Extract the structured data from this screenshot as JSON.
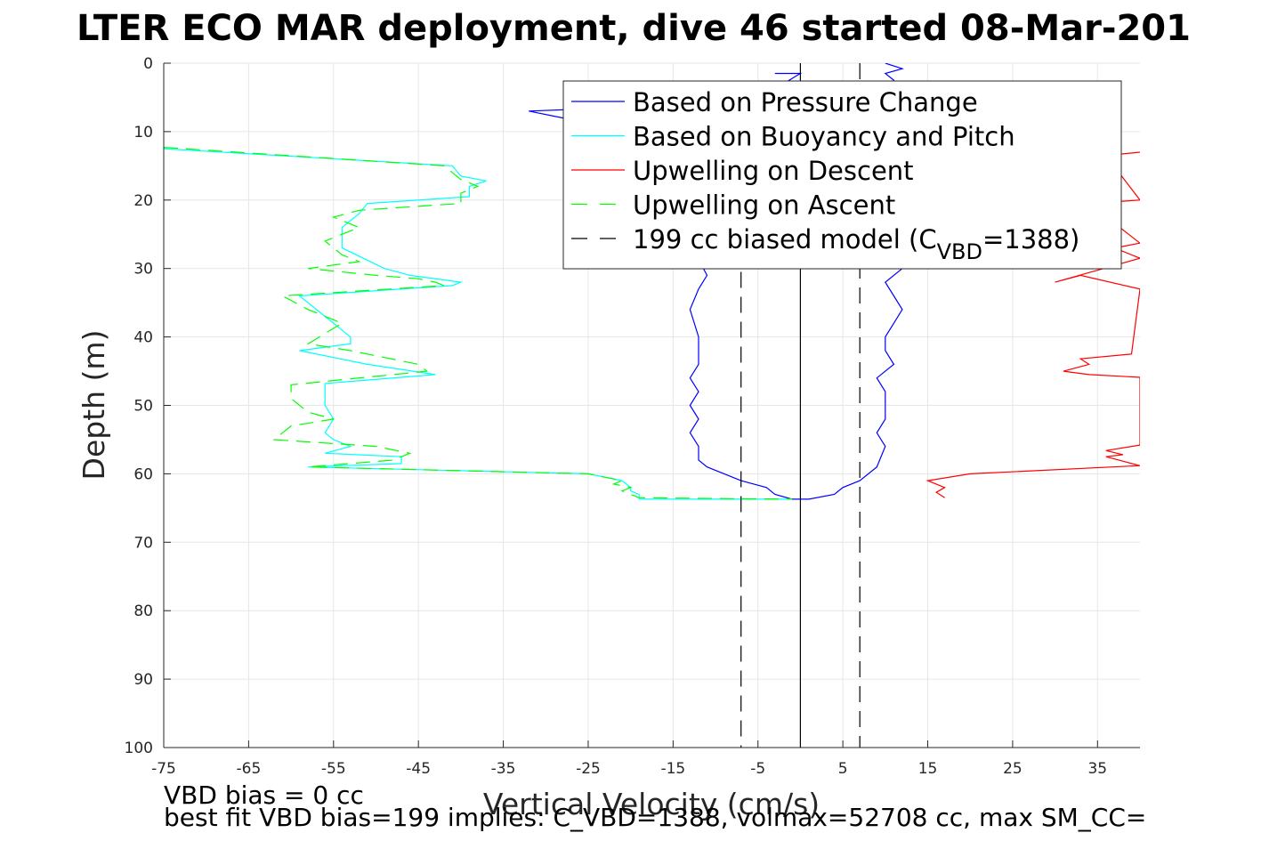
{
  "chart_data": {
    "type": "line",
    "title": "LTER ECO MAR deployment, dive 46 started 08-Mar-201",
    "xlabel": "Vertical Velocity (cm/s)",
    "ylabel": "Depth (m)",
    "xlim": [
      -75,
      40
    ],
    "ylim": [
      0,
      100
    ],
    "y_reversed": true,
    "grid": true,
    "x_ticks": [
      -75,
      -65,
      -55,
      -45,
      -35,
      -25,
      -15,
      -5,
      5,
      15,
      25,
      35
    ],
    "y_ticks": [
      0,
      10,
      20,
      30,
      40,
      50,
      60,
      70,
      80,
      90,
      100
    ],
    "legend_position": "top-right",
    "legend": [
      {
        "label": "Based on Pressure Change",
        "color": "#0000ff",
        "dash": "solid"
      },
      {
        "label": "Based on Buoyancy and Pitch",
        "color": "#00ffff",
        "dash": "solid"
      },
      {
        "label": "Upwelling on Descent",
        "color": "#ff0000",
        "dash": "solid"
      },
      {
        "label": "Upwelling on Ascent",
        "color": "#00ff00",
        "dash": "dashed"
      },
      {
        "label_main": "199 cc biased model (C",
        "label_sub": "VBD",
        "label_end": "=1388)",
        "color": "#000000",
        "dash": "dashed"
      }
    ],
    "series": [
      {
        "name": "Based on Pressure Change",
        "color": "#0000ff",
        "dash": "solid",
        "x": [
          -3,
          0,
          -2,
          -10,
          -32,
          -28,
          -24,
          -20,
          -11,
          -12,
          -13,
          -12,
          -12,
          -13,
          -12,
          -13,
          -12,
          -13,
          -12,
          -12,
          -11,
          -7,
          -4,
          -3,
          -1,
          1,
          4,
          5,
          7,
          9,
          10,
          9,
          10,
          10,
          10,
          9,
          11,
          10,
          10,
          11,
          12,
          11,
          10,
          12,
          13,
          12,
          11,
          10,
          10,
          11,
          10,
          12,
          10
        ],
        "y": [
          1.5,
          1.5,
          3,
          6,
          7,
          8,
          9,
          10,
          31,
          33,
          36,
          40,
          44,
          46,
          48,
          50,
          52,
          54,
          56,
          58,
          59,
          61,
          62,
          63,
          63.7,
          63.7,
          63,
          62,
          61,
          59,
          56,
          54,
          52,
          50,
          48,
          46,
          44,
          42,
          40,
          38,
          36,
          34,
          32,
          30,
          25,
          20,
          15,
          10,
          5,
          2.5,
          1.5,
          0.8,
          0
        ]
      },
      {
        "name": "Based on Buoyancy and Pitch",
        "color": "#00ffff",
        "dash": "solid",
        "x": [
          -75,
          -41,
          -40,
          -37,
          -39,
          -39,
          -51,
          -52,
          -54,
          -54,
          -49,
          -46,
          -40,
          -41,
          -59,
          -56,
          -53,
          -53,
          -59,
          -51,
          -43,
          -56,
          -56,
          -55,
          -56,
          -55,
          -53,
          -56,
          -47,
          -47,
          -58,
          -25,
          -21,
          -20,
          -20,
          -19,
          -19,
          -1
        ],
        "y": [
          12.5,
          15,
          16.5,
          17.2,
          18,
          19.5,
          20.5,
          22,
          24,
          27,
          30,
          31,
          32,
          32.5,
          34,
          37,
          40,
          41,
          42,
          44,
          45.5,
          46.8,
          50,
          52,
          54,
          55,
          56,
          57,
          57.5,
          58.5,
          59,
          60,
          61,
          62,
          62.5,
          63,
          63.7,
          63.7
        ]
      },
      {
        "name": "Upwelling on Ascent",
        "color": "#00ff00",
        "dash": "dashed",
        "x": [
          -75,
          -42,
          -40,
          -38,
          -40,
          -40,
          -52,
          -55,
          -52,
          -56,
          -54,
          -52,
          -58,
          -50,
          -45,
          -43,
          -42,
          -61,
          -58,
          -54,
          -58,
          -53,
          -45,
          -44,
          -60,
          -60,
          -58,
          -55,
          -60,
          -62,
          -50,
          -46,
          -48,
          -58,
          -25,
          -21,
          -22,
          -20,
          -21,
          -20,
          -19,
          -1
        ],
        "y": [
          12.3,
          15,
          17,
          18,
          19,
          20.5,
          21.5,
          22.5,
          24,
          26,
          28,
          29,
          30,
          31,
          31.5,
          32,
          32.5,
          34,
          36,
          38,
          41,
          42,
          44,
          45,
          47,
          49,
          51,
          52,
          53,
          55,
          56,
          57,
          58,
          59,
          60,
          61,
          61.5,
          62,
          62.5,
          63,
          63.5,
          63.7
        ]
      },
      {
        "name": "Upwelling on Descent",
        "color": "#ff0000",
        "dash": "solid",
        "x": [
          40,
          36,
          40,
          34,
          40,
          37,
          40,
          30,
          33,
          40,
          39,
          33,
          34,
          31,
          34,
          40,
          40,
          36,
          38,
          36,
          40,
          20,
          15,
          17,
          16,
          17
        ],
        "y": [
          13,
          13.5,
          20,
          20.5,
          26.3,
          27,
          28.5,
          32,
          31,
          33,
          42.5,
          43.2,
          44,
          45,
          45.5,
          45.9,
          55.8,
          56.6,
          57.2,
          57.5,
          58.8,
          60,
          61,
          62,
          62.7,
          63.5
        ]
      },
      {
        "name": "199 cc biased model (CVBD=1388)",
        "color": "#000000",
        "dash": "dashed",
        "x": [
          -7,
          -7
        ],
        "y": [
          5,
          100
        ]
      },
      {
        "name": "199 cc biased model (CVBD=1388)",
        "color": "#000000",
        "dash": "dashed",
        "x": [
          7,
          7
        ],
        "y": [
          0,
          100
        ]
      },
      {
        "color": "#000000",
        "dash": "solid",
        "x": [
          0,
          0
        ],
        "y": [
          0,
          100
        ]
      }
    ]
  },
  "notes": {
    "vbd_bias": "VBD bias = 0 cc",
    "best_fit": "best fit VBD bias=199 implies: C_VBD=1388, volmax=52708 cc, max SM_CC="
  }
}
